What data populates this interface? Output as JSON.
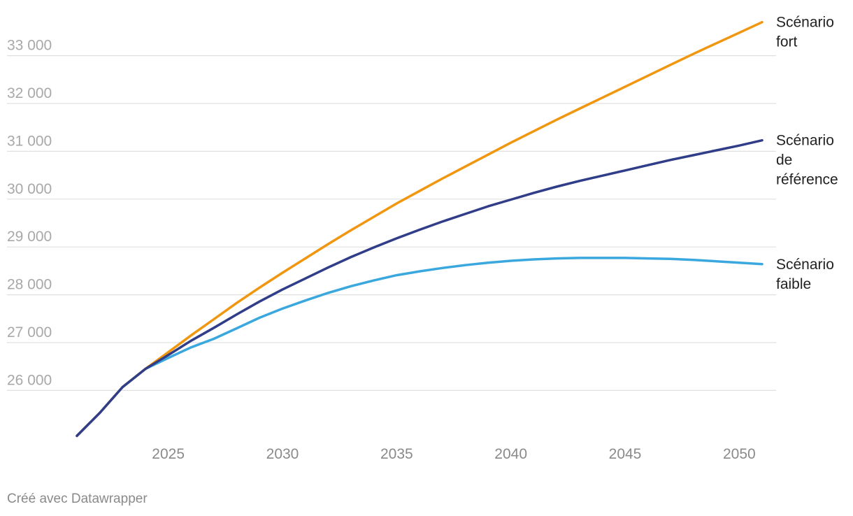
{
  "chart_data": {
    "type": "line",
    "title": "",
    "xlabel": "",
    "ylabel": "",
    "xlim": [
      2021,
      2051
    ],
    "ylim": [
      25000,
      33600
    ],
    "x_ticks": [
      2025,
      2030,
      2035,
      2040,
      2045,
      2050
    ],
    "y_ticks": [
      26000,
      27000,
      28000,
      29000,
      30000,
      31000,
      32000,
      33000
    ],
    "y_tick_labels": [
      "26 000",
      "27 000",
      "28 000",
      "29 000",
      "30 000",
      "31 000",
      "32 000",
      "33 000"
    ],
    "grid": true,
    "legend": "direct labels at line ends",
    "x": [
      2021,
      2022,
      2023,
      2024,
      2025,
      2026,
      2027,
      2028,
      2029,
      2030,
      2031,
      2032,
      2033,
      2034,
      2035,
      2036,
      2037,
      2038,
      2039,
      2040,
      2041,
      2042,
      2043,
      2044,
      2045,
      2046,
      2047,
      2048,
      2049,
      2050,
      2051
    ],
    "series": [
      {
        "name": "Scénario fort",
        "label_lines": [
          "Scénario",
          "fort"
        ],
        "color": "#f0960f",
        "values": [
          25050,
          25530,
          26070,
          26450,
          26800,
          27150,
          27490,
          27830,
          28150,
          28460,
          28760,
          29060,
          29350,
          29630,
          29910,
          30170,
          30430,
          30680,
          30930,
          31180,
          31420,
          31660,
          31890,
          32120,
          32350,
          32580,
          32810,
          33040,
          33260,
          33480,
          33700
        ]
      },
      {
        "name": "Scénario de référence",
        "label_lines": [
          "Scénario",
          "de",
          "référence"
        ],
        "color": "#303d88",
        "values": [
          25050,
          25530,
          26070,
          26450,
          26740,
          27040,
          27310,
          27590,
          27860,
          28110,
          28340,
          28570,
          28790,
          28990,
          29180,
          29360,
          29530,
          29690,
          29850,
          29990,
          30130,
          30260,
          30380,
          30490,
          30600,
          30710,
          30820,
          30920,
          31020,
          31120,
          31230
        ]
      },
      {
        "name": "Scénario faible",
        "label_lines": [
          "Scénario",
          "faible"
        ],
        "color": "#3aa8de",
        "values": [
          25050,
          25530,
          26070,
          26450,
          26680,
          26900,
          27080,
          27300,
          27520,
          27710,
          27880,
          28040,
          28180,
          28300,
          28410,
          28490,
          28560,
          28620,
          28670,
          28710,
          28740,
          28760,
          28770,
          28770,
          28770,
          28760,
          28750,
          28730,
          28700,
          28670,
          28640
        ]
      }
    ]
  },
  "credit": "Créé avec Datawrapper"
}
